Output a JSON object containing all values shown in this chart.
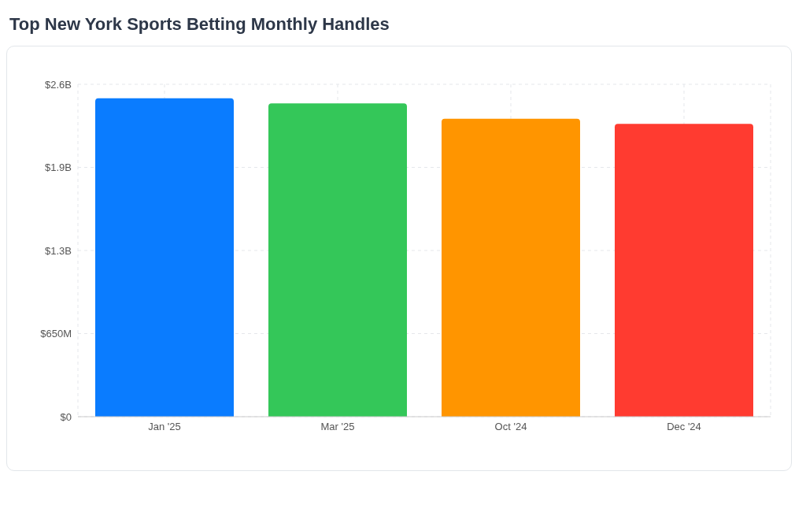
{
  "chart_data": {
    "type": "bar",
    "title": "Top New York Sports Betting Monthly Handles",
    "categories": [
      "Jan '25",
      "Mar '25",
      "Oct '24",
      "Dec '24"
    ],
    "values": [
      2490000000,
      2450000000,
      2330000000,
      2290000000
    ],
    "colors": [
      "#0a7cff",
      "#34c759",
      "#ff9500",
      "#ff3b30"
    ],
    "ylim": [
      0,
      2600000000
    ],
    "yticks": [
      {
        "value": 0,
        "label": "$0"
      },
      {
        "value": 650000000,
        "label": "$650M"
      },
      {
        "value": 1300000000,
        "label": "$1.3B"
      },
      {
        "value": 1950000000,
        "label": "$1.9B"
      },
      {
        "value": 2600000000,
        "label": "$2.6B"
      }
    ],
    "grid": true
  }
}
